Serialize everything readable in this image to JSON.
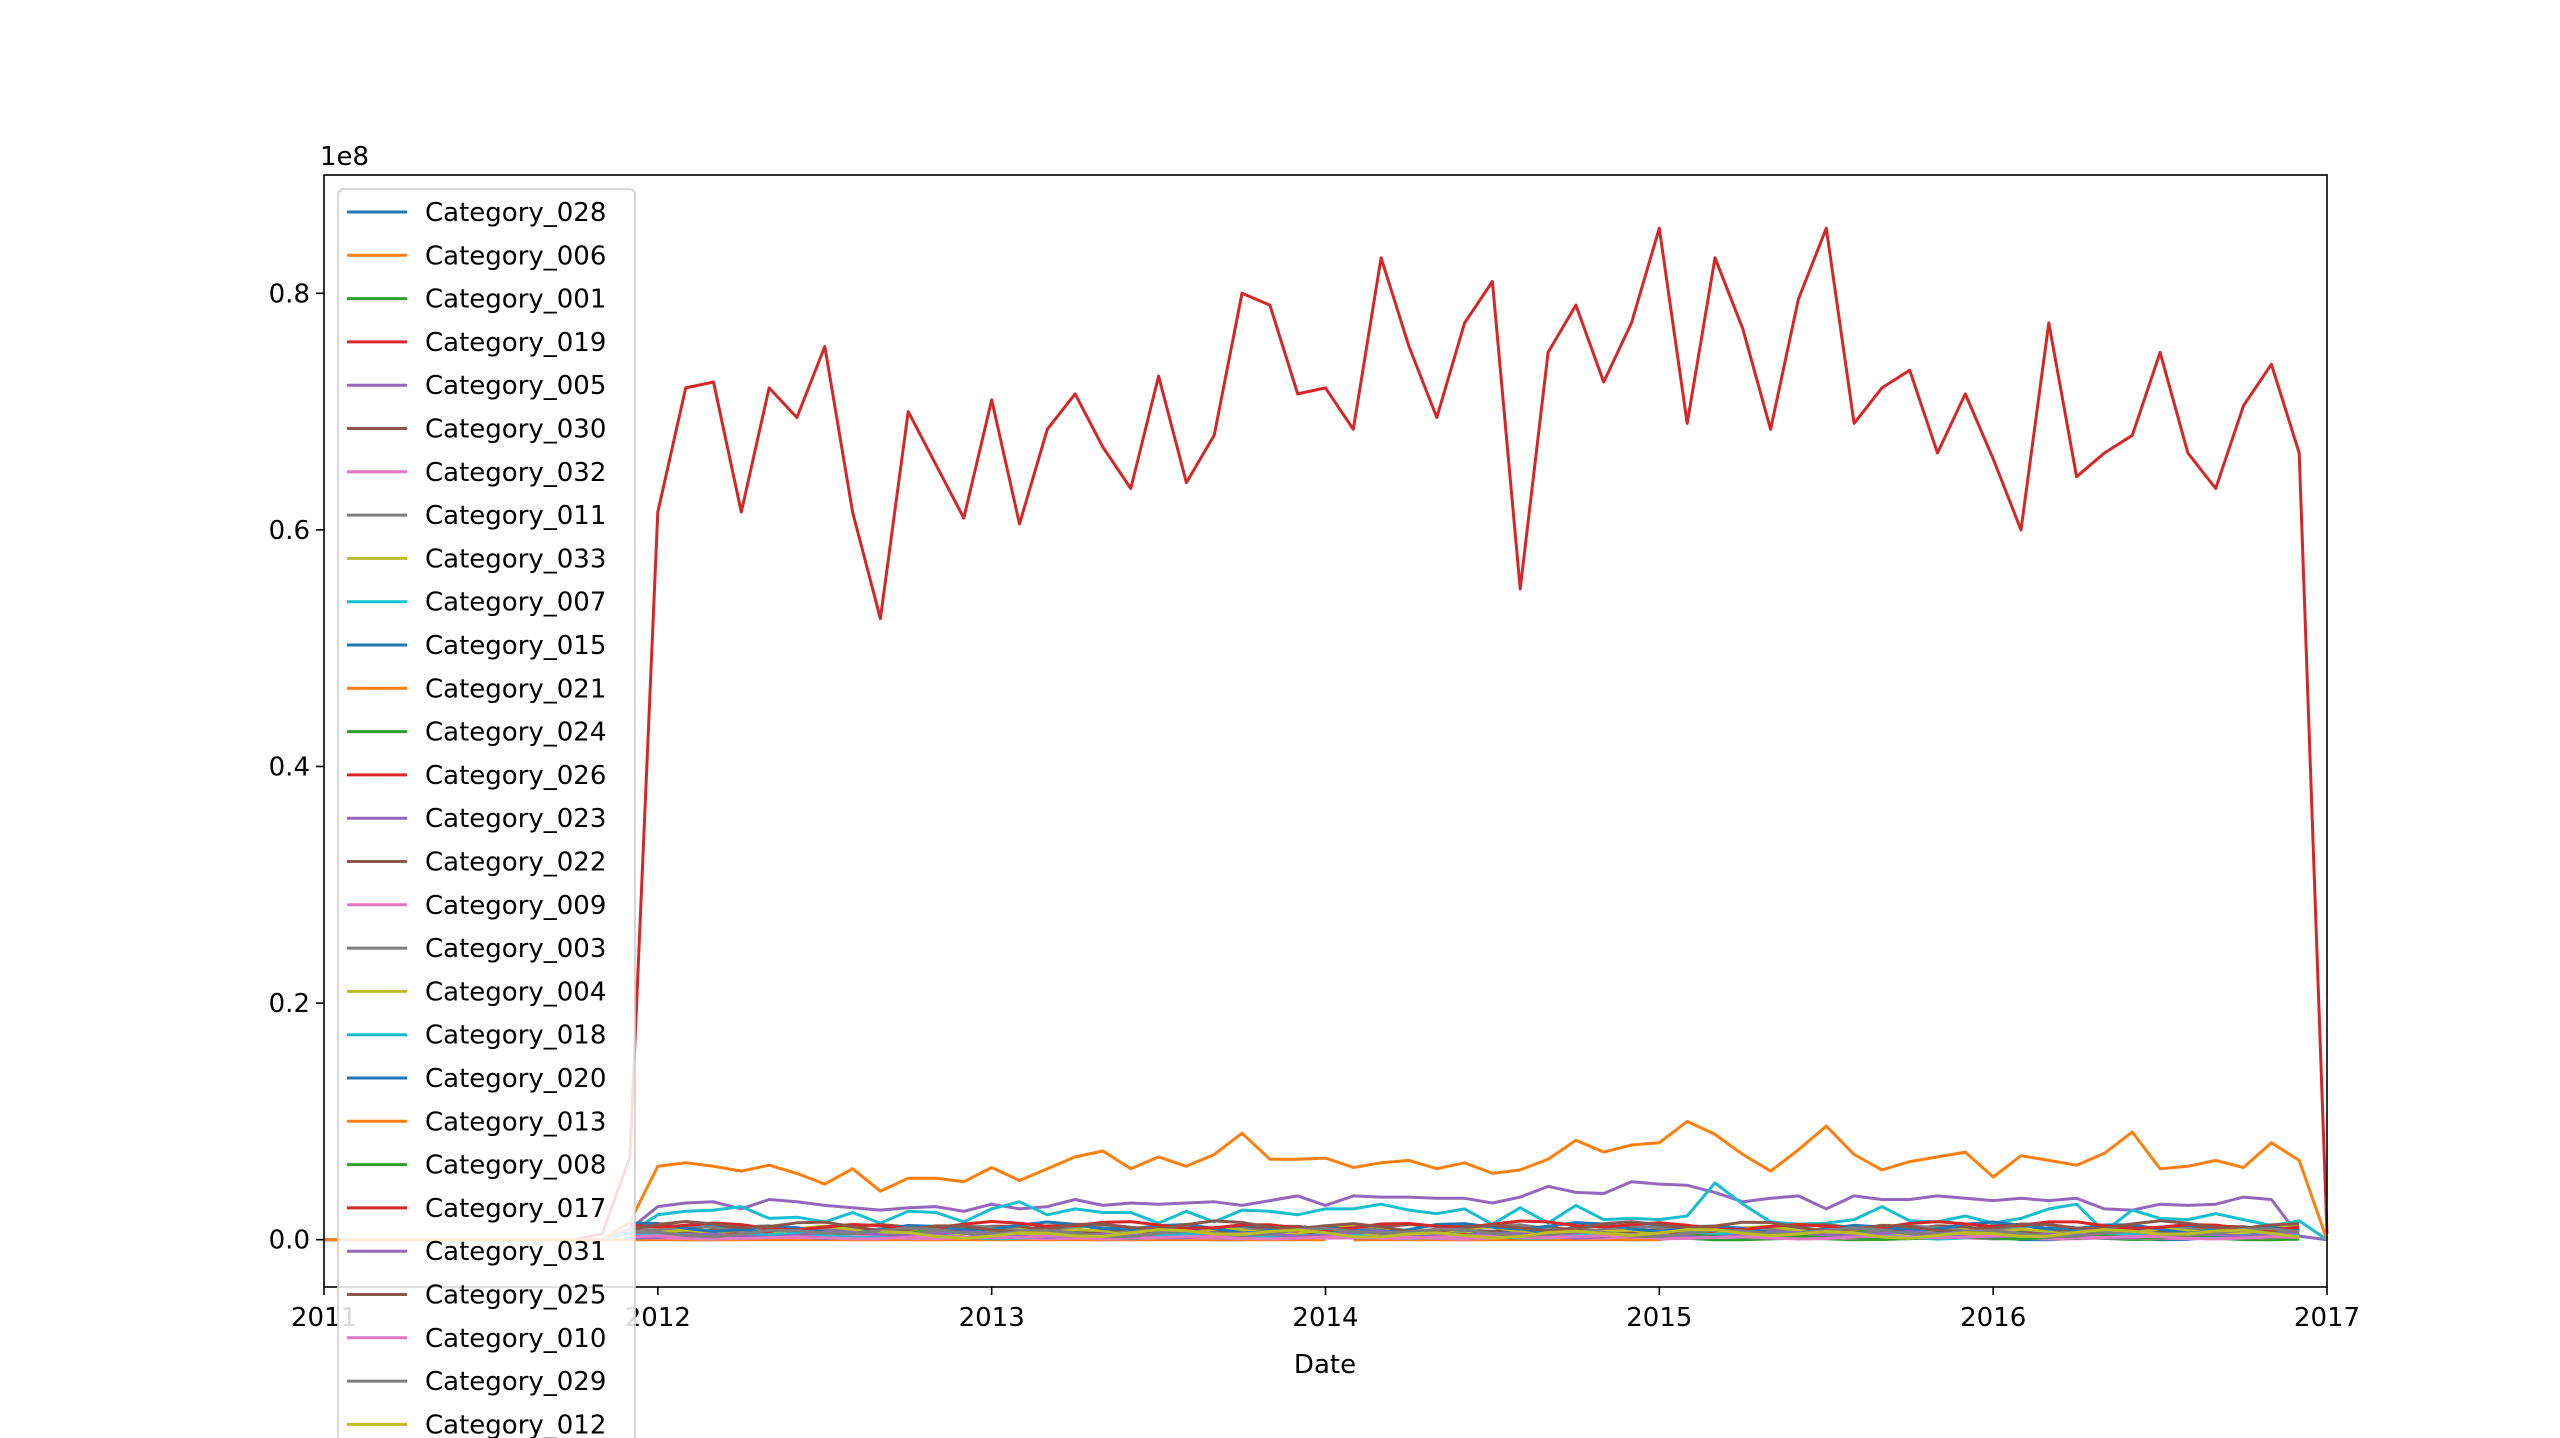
{
  "chart_data": {
    "type": "line",
    "title": "",
    "xlabel": "Date",
    "ylabel": "",
    "y_offset_text": "1e8",
    "y_scale_factor": 100000000,
    "xlim": [
      "2011-01",
      "2017-01"
    ],
    "ylim": [
      -4000000,
      90000000
    ],
    "x_ticks": [
      "2011",
      "2012",
      "2013",
      "2014",
      "2015",
      "2016",
      "2017"
    ],
    "y_ticks": [
      "0.0",
      "0.2",
      "0.4",
      "0.6",
      "0.8"
    ],
    "grid": false,
    "legend_position": "upper-left",
    "colors": {
      "tab_blue": "#1f77b4",
      "tab_orange": "#ff7f0e",
      "tab_green": "#2ca02c",
      "tab_red": "#d62728",
      "tab_purple": "#9467bd",
      "tab_brown": "#8c564b",
      "tab_pink": "#e377c2",
      "tab_gray": "#7f7f7f",
      "tab_olive": "#bcbd22",
      "tab_cyan": "#17becf"
    },
    "x_dates": [
      "2011-01",
      "2011-02",
      "2011-03",
      "2011-04",
      "2011-05",
      "2011-06",
      "2011-07",
      "2011-08",
      "2011-09",
      "2011-10",
      "2011-11",
      "2011-12",
      "2012-01",
      "2012-02",
      "2012-03",
      "2012-04",
      "2012-05",
      "2012-06",
      "2012-07",
      "2012-08",
      "2012-09",
      "2012-10",
      "2012-11",
      "2012-12",
      "2013-01",
      "2013-02",
      "2013-03",
      "2013-04",
      "2013-05",
      "2013-06",
      "2013-07",
      "2013-08",
      "2013-09",
      "2013-10",
      "2013-11",
      "2013-12",
      "2014-01",
      "2014-02",
      "2014-03",
      "2014-04",
      "2014-05",
      "2014-06",
      "2014-07",
      "2014-08",
      "2014-09",
      "2014-10",
      "2014-11",
      "2014-12",
      "2015-01",
      "2015-02",
      "2015-03",
      "2015-04",
      "2015-05",
      "2015-06",
      "2015-07",
      "2015-08",
      "2015-09",
      "2015-10",
      "2015-11",
      "2015-12",
      "2016-01",
      "2016-02",
      "2016-03",
      "2016-04",
      "2016-05",
      "2016-06",
      "2016-07",
      "2016-08",
      "2016-09",
      "2016-10",
      "2016-11",
      "2016-12",
      "2017-01"
    ],
    "series": [
      {
        "name": "Category_028",
        "color": "#1f77b4",
        "start": "2011-12",
        "end": "2016-12",
        "base": 200000,
        "amp": 300000
      },
      {
        "name": "Category_006",
        "color": "#ff7f0e",
        "start": "2011-01",
        "end": "2014-01",
        "base": 0,
        "amp": 0
      },
      {
        "name": "Category_001",
        "color": "#2ca02c",
        "start": "2015-01",
        "end": "2016-12",
        "base": 100000,
        "amp": 150000
      },
      {
        "name": "Category_019",
        "color": "#d62728",
        "values": [
          0,
          0,
          0,
          0,
          0,
          0,
          0,
          0,
          0,
          0,
          500000,
          7000000,
          61500000,
          72000000,
          72500000,
          61500000,
          72000000,
          69500000,
          75500000,
          61500000,
          52500000,
          70000000,
          65500000,
          61000000,
          71000000,
          60500000,
          68500000,
          71500000,
          67000000,
          63500000,
          73000000,
          64000000,
          68000000,
          80000000,
          79000000,
          71500000,
          72000000,
          68500000,
          83000000,
          75500000,
          69500000,
          77500000,
          81000000,
          55000000,
          75000000,
          79000000,
          72500000,
          77500000,
          85500000,
          69000000,
          83000000,
          77000000,
          68500000,
          79500000,
          85500000,
          69000000,
          72000000,
          73500000,
          66500000,
          71500000,
          66000000,
          60000000,
          77500000,
          64500000,
          66500000,
          68000000,
          75000000,
          66500000,
          63500000,
          70500000,
          74000000,
          66500000,
          500000
        ]
      },
      {
        "name": "Category_005",
        "color": "#9467bd",
        "values": [
          0,
          0,
          0,
          0,
          0,
          0,
          0,
          0,
          0,
          0,
          0,
          900000,
          2800000,
          3100000,
          3200000,
          2600000,
          3400000,
          3200000,
          2900000,
          2700000,
          2500000,
          2700000,
          2800000,
          2400000,
          3000000,
          2600000,
          2800000,
          3400000,
          2900000,
          3100000,
          3000000,
          3100000,
          3200000,
          2900000,
          3300000,
          3700000,
          2900000,
          3700000,
          3600000,
          3600000,
          3500000,
          3500000,
          3100000,
          3600000,
          4500000,
          4000000,
          3900000,
          4900000,
          4700000,
          4600000,
          4000000,
          3200000,
          3500000,
          3700000,
          2600000,
          3700000,
          3400000,
          3400000,
          3700000,
          3500000,
          3300000,
          3500000,
          3300000,
          3500000,
          2600000,
          2500000,
          3000000,
          2900000,
          3000000,
          3600000,
          3400000,
          300000,
          0
        ]
      },
      {
        "name": "Category_030",
        "color": "#8c564b",
        "start": "2011-12",
        "end": "2016-12",
        "base": 800000,
        "amp": 500000
      },
      {
        "name": "Category_032",
        "color": "#e377c2",
        "start": "2011-12",
        "end": "2016-12",
        "base": 150000,
        "amp": 100000
      },
      {
        "name": "Category_011",
        "color": "#7f7f7f",
        "start": "2011-12",
        "end": "2016-12",
        "base": 700000,
        "amp": 500000
      },
      {
        "name": "Category_033",
        "color": "#bcbd22",
        "start": "2011-12",
        "end": "2016-12",
        "base": 600000,
        "amp": 400000
      },
      {
        "name": "Category_007",
        "color": "#17becf",
        "values": [
          0,
          0,
          0,
          0,
          0,
          0,
          0,
          0,
          0,
          0,
          0,
          600000,
          2100000,
          2400000,
          2500000,
          2800000,
          1800000,
          1900000,
          1500000,
          2300000,
          1400000,
          2400000,
          2300000,
          1500000,
          2600000,
          3200000,
          2100000,
          2600000,
          2300000,
          2300000,
          1400000,
          2400000,
          1500000,
          2500000,
          2400000,
          2100000,
          2600000,
          2600000,
          3000000,
          2500000,
          2200000,
          2600000,
          1300000,
          2700000,
          1400000,
          2900000,
          1700000,
          1800000,
          1700000,
          2000000,
          4800000,
          3000000,
          1500000,
          1300000,
          1400000,
          1700000,
          2800000,
          1600000,
          1500000,
          2000000,
          1400000,
          1800000,
          2600000,
          3000000,
          700000,
          2500000,
          1800000,
          1700000,
          2200000,
          1700000,
          1200000,
          1600000,
          0
        ]
      },
      {
        "name": "Category_015",
        "color": "#1f77b4",
        "start": "2011-12",
        "end": "2016-12",
        "base": 700000,
        "amp": 500000
      },
      {
        "name": "Category_021",
        "color": "#ff7f0e",
        "start": "2014-02",
        "end": "2015-01",
        "base": 0,
        "amp": 0
      },
      {
        "name": "Category_024",
        "color": "#2ca02c",
        "start": "2011-12",
        "end": "2016-12",
        "base": 500000,
        "amp": 400000
      },
      {
        "name": "Category_026",
        "color": "#d62728",
        "start": "2011-12",
        "end": "2016-12",
        "base": 400000,
        "amp": 300000
      },
      {
        "name": "Category_023",
        "color": "#9467bd",
        "start": "2011-12",
        "end": "2016-12",
        "base": 300000,
        "amp": 200000
      },
      {
        "name": "Category_022",
        "color": "#8c564b",
        "start": "2011-12",
        "end": "2016-12",
        "base": 900000,
        "amp": 400000
      },
      {
        "name": "Category_009",
        "color": "#e377c2",
        "start": "2011-12",
        "end": "2016-12",
        "base": 200000,
        "amp": 150000
      },
      {
        "name": "Category_003",
        "color": "#7f7f7f",
        "start": "2011-12",
        "end": "2016-12",
        "base": 800000,
        "amp": 500000
      },
      {
        "name": "Category_004",
        "color": "#bcbd22",
        "start": "2011-12",
        "end": "2016-12",
        "base": 700000,
        "amp": 600000
      },
      {
        "name": "Category_018",
        "color": "#17becf",
        "start": "2011-12",
        "end": "2016-12",
        "base": 300000,
        "amp": 250000
      },
      {
        "name": "Category_020",
        "color": "#1f77b4",
        "start": "2011-12",
        "end": "2016-12",
        "base": 1000000,
        "amp": 500000
      },
      {
        "name": "Category_013",
        "color": "#ff7f0e",
        "values": [
          0,
          0,
          0,
          0,
          0,
          0,
          0,
          0,
          0,
          0,
          0,
          1500000,
          6200000,
          6500000,
          6200000,
          5800000,
          6300000,
          5600000,
          4700000,
          6000000,
          4100000,
          5200000,
          5200000,
          4900000,
          6100000,
          5000000,
          6000000,
          7000000,
          7500000,
          6000000,
          7000000,
          6200000,
          7200000,
          9000000,
          6800000,
          6800000,
          6900000,
          6100000,
          6500000,
          6700000,
          6000000,
          6500000,
          5600000,
          5900000,
          6800000,
          8400000,
          7400000,
          8000000,
          8200000,
          10000000,
          8900000,
          7200000,
          5800000,
          7600000,
          9600000,
          7200000,
          5900000,
          6600000,
          7000000,
          7400000,
          5300000,
          7100000,
          6700000,
          6300000,
          7300000,
          9100000,
          6000000,
          6200000,
          6700000,
          6100000,
          8200000,
          6700000,
          0
        ]
      },
      {
        "name": "Category_008",
        "color": "#2ca02c",
        "start": "2015-01",
        "end": "2016-12",
        "base": 200000,
        "amp": 200000
      },
      {
        "name": "Category_017",
        "color": "#d62728",
        "start": "2011-12",
        "end": "2016-12",
        "base": 1200000,
        "amp": 400000
      },
      {
        "name": "Category_031",
        "color": "#9467bd",
        "start": "2011-12",
        "end": "2016-12",
        "base": 400000,
        "amp": 300000
      },
      {
        "name": "Category_025",
        "color": "#8c564b",
        "start": "2011-12",
        "end": "2016-12",
        "base": 1100000,
        "amp": 500000
      },
      {
        "name": "Category_010",
        "color": "#e377c2",
        "start": "2011-12",
        "end": "2016-12",
        "base": 200000,
        "amp": 150000
      },
      {
        "name": "Category_029",
        "color": "#7f7f7f",
        "start": "2011-12",
        "end": "2016-12",
        "base": 600000,
        "amp": 400000
      },
      {
        "name": "Category_012",
        "color": "#bcbd22",
        "start": "2012-09",
        "end": "2016-12",
        "base": 500000,
        "amp": 400000
      }
    ]
  }
}
